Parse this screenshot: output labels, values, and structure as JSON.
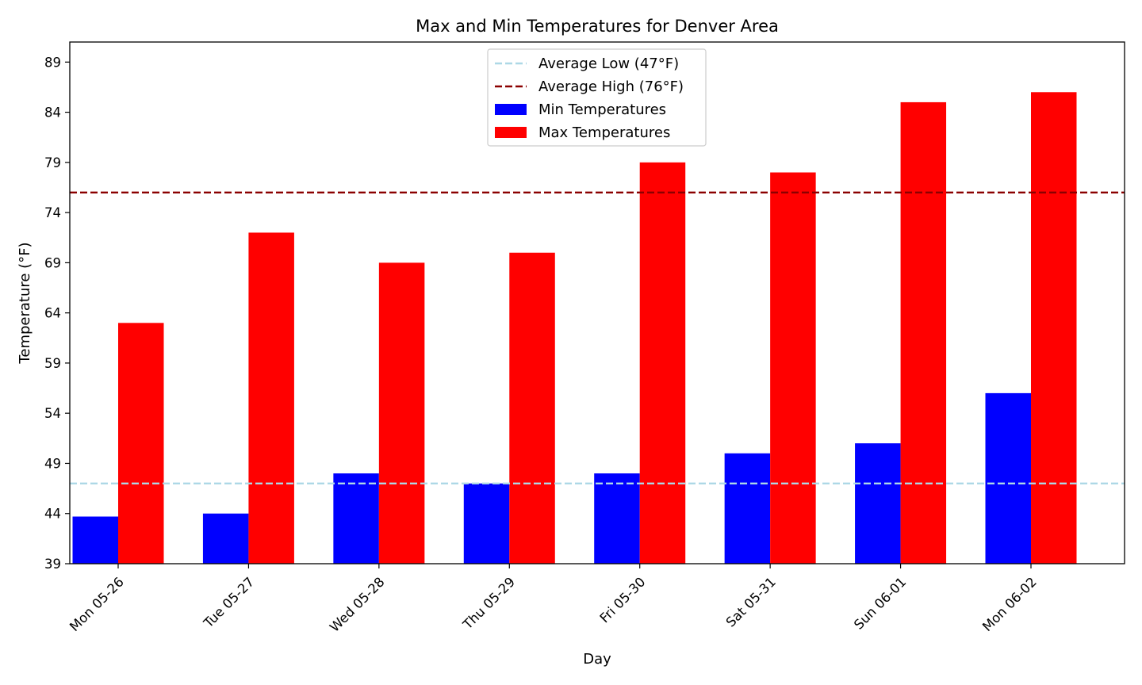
{
  "chart_data": {
    "type": "bar",
    "title": "Max and Min Temperatures for Denver Area",
    "xlabel": "Day",
    "ylabel": "Temperature (°F)",
    "categories": [
      "Mon 05-26",
      "Tue 05-27",
      "Wed 05-28",
      "Thu 05-29",
      "Fri 05-30",
      "Sat 05-31",
      "Sun 06-01",
      "Mon 06-02"
    ],
    "series": [
      {
        "name": "Min Temperatures",
        "color": "#0000ff",
        "values": [
          43.7,
          44,
          48,
          47,
          48,
          50,
          51,
          56
        ]
      },
      {
        "name": "Max Temperatures",
        "color": "#ff0000",
        "values": [
          63,
          72,
          69,
          70,
          79,
          78,
          85,
          86
        ]
      }
    ],
    "reference_lines": [
      {
        "name": "Average Low (47°F)",
        "value": 47,
        "color": "#add8e6",
        "style": "dashed"
      },
      {
        "name": "Average High (76°F)",
        "value": 76,
        "color": "#8b0000",
        "style": "dashed"
      }
    ],
    "ylim": [
      39,
      91
    ],
    "yticks": [
      39,
      44,
      49,
      54,
      59,
      64,
      69,
      74,
      79,
      84,
      89
    ],
    "legend": "upper center",
    "grid": false
  }
}
